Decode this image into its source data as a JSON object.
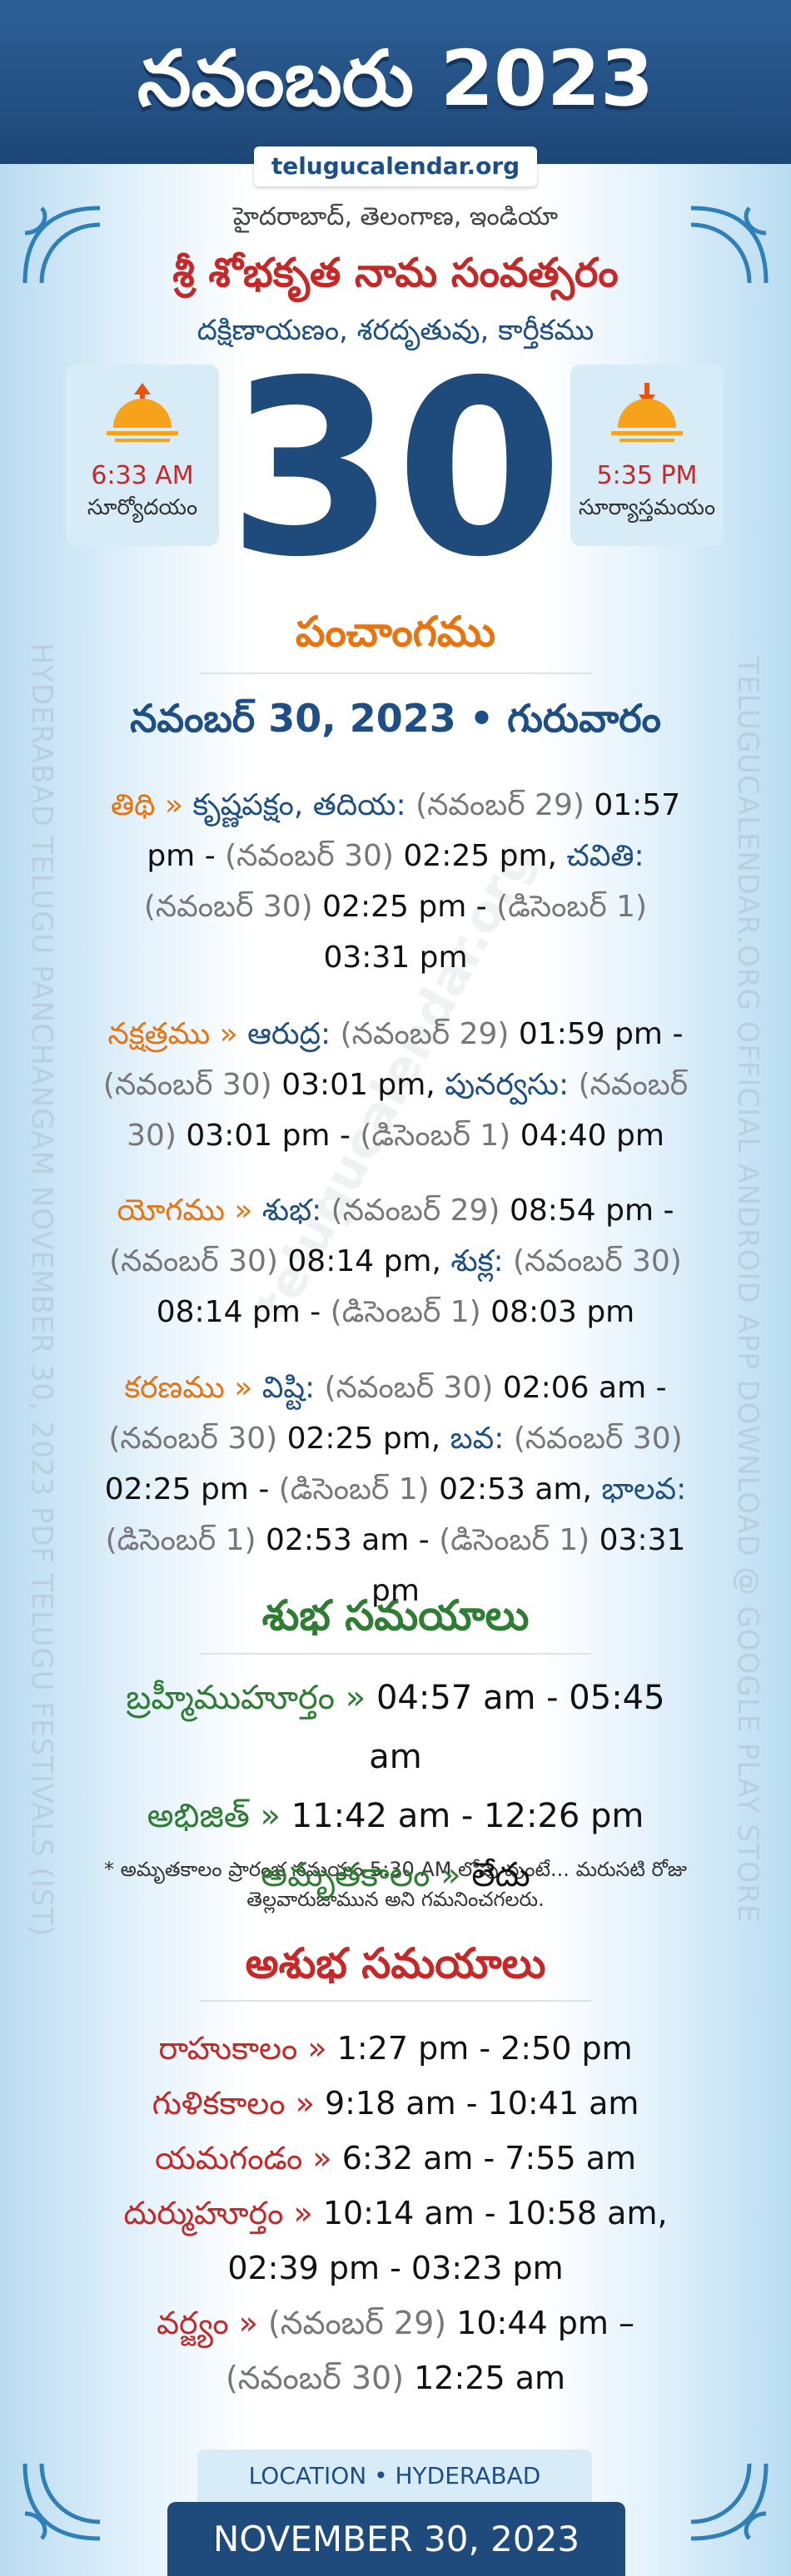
{
  "header": {
    "title": "నవంబరు 2023",
    "website": "telugucalendar.org"
  },
  "side_text": {
    "left": "HYDERABAD TELUGU PANCHANGAM NOVEMBER 30, 2023 PDF TELUGU FESTIVALS (IST)",
    "right": "TELUGUCALENDAR.ORG OFFICIAL ANDROID APP DOWNLOAD @ GOOGLE PLAY STORE"
  },
  "watermark": "telugucalendar.org",
  "location": "హైదరాబాద్, తెలంగాణ, ఇండియా",
  "year_name": "శ్రీ శోభకృత నామ సంవత్సరం",
  "season": "దక్షిణాయణం, శరదృతువు, కార్తీకము",
  "sunrise": {
    "time": "6:33 AM",
    "label": "సూర్యోదయం"
  },
  "sunset": {
    "time": "5:35 PM",
    "label": "సూర్యాస్తమయం"
  },
  "day": "30",
  "panchangam": {
    "heading": "పంచాంగము",
    "date": "నవంబర్ 30, 2023 • గురువారం",
    "items": [
      {
        "label": "తిథి »",
        "segments": [
          {
            "kind": "name",
            "text": "కృష్ణపక్షం, తదియ:"
          },
          {
            "kind": "date",
            "text": "(నవంబర్ 29)"
          },
          {
            "kind": "time",
            "text": "01:57 pm -"
          },
          {
            "kind": "date",
            "text": "(నవంబర్ 30)"
          },
          {
            "kind": "time",
            "text": "02:25 pm,"
          },
          {
            "kind": "name",
            "text": "చవితి:"
          },
          {
            "kind": "date",
            "text": "(నవంబర్ 30)"
          },
          {
            "kind": "time",
            "text": "02:25 pm -"
          },
          {
            "kind": "date",
            "text": "(డిసెంబర్ 1)"
          },
          {
            "kind": "time",
            "text": "03:31 pm"
          }
        ]
      },
      {
        "label": "నక్షత్రము »",
        "segments": [
          {
            "kind": "name",
            "text": "ఆరుద్ర:"
          },
          {
            "kind": "date",
            "text": "(నవంబర్ 29)"
          },
          {
            "kind": "time",
            "text": "01:59 pm -"
          },
          {
            "kind": "date",
            "text": "(నవంబర్ 30)"
          },
          {
            "kind": "time",
            "text": "03:01 pm,"
          },
          {
            "kind": "name",
            "text": "పునర్వసు:"
          },
          {
            "kind": "date",
            "text": "(నవంబర్ 30)"
          },
          {
            "kind": "time",
            "text": "03:01 pm -"
          },
          {
            "kind": "date",
            "text": "(డిసెంబర్ 1)"
          },
          {
            "kind": "time",
            "text": "04:40 pm"
          }
        ]
      },
      {
        "label": "యోగము »",
        "segments": [
          {
            "kind": "name",
            "text": "శుభ:"
          },
          {
            "kind": "date",
            "text": "(నవంబర్ 29)"
          },
          {
            "kind": "time",
            "text": "08:54 pm -"
          },
          {
            "kind": "date",
            "text": "(నవంబర్ 30)"
          },
          {
            "kind": "time",
            "text": "08:14 pm,"
          },
          {
            "kind": "name",
            "text": "శుక్ల:"
          },
          {
            "kind": "date",
            "text": "(నవంబర్ 30)"
          },
          {
            "kind": "time",
            "text": "08:14 pm -"
          },
          {
            "kind": "date",
            "text": "(డిసెంబర్ 1)"
          },
          {
            "kind": "time",
            "text": "08:03 pm"
          }
        ]
      },
      {
        "label": "కరణము »",
        "segments": [
          {
            "kind": "name",
            "text": "విష్టి:"
          },
          {
            "kind": "date",
            "text": "(నవంబర్ 30)"
          },
          {
            "kind": "time",
            "text": "02:06 am -"
          },
          {
            "kind": "date",
            "text": "(నవంబర్ 30)"
          },
          {
            "kind": "time",
            "text": "02:25 pm,"
          },
          {
            "kind": "name",
            "text": "బవ:"
          },
          {
            "kind": "date",
            "text": "(నవంబర్ 30)"
          },
          {
            "kind": "time",
            "text": "02:25 pm -"
          },
          {
            "kind": "date",
            "text": "(డిసెంబర్ 1)"
          },
          {
            "kind": "time",
            "text": "02:53 am,"
          },
          {
            "kind": "name",
            "text": "భాలవ:"
          },
          {
            "kind": "date",
            "text": "(డిసెంబర్ 1)"
          },
          {
            "kind": "time",
            "text": "02:53 am -"
          },
          {
            "kind": "date",
            "text": "(డిసెంబర్ 1)"
          },
          {
            "kind": "time",
            "text": "03:31 pm"
          }
        ]
      }
    ]
  },
  "shubha": {
    "heading": "శుభ సమయాలు",
    "items": [
      {
        "label": "బ్రహ్మీముహూర్తం »",
        "segments": [
          {
            "kind": "time",
            "text": "04:57 am - 05:45 am"
          }
        ]
      },
      {
        "label": "అభిజిత్ »",
        "segments": [
          {
            "kind": "time",
            "text": "11:42 am - 12:26 pm"
          }
        ]
      },
      {
        "label": "అమృతకాలం »",
        "segments": [
          {
            "kind": "time",
            "text": "లేదు"
          }
        ]
      }
    ],
    "note": "* అమృతకాలం ప్రారంభ సమయం 5:30 AM లోపు వుంటే... మరుసటి రోజు తెల్లవారుజామున అని గమనించగలరు."
  },
  "ashubha": {
    "heading": "అశుభ సమయాలు",
    "items": [
      {
        "label": "రాహుకాలం »",
        "segments": [
          {
            "kind": "time",
            "text": "1:27 pm - 2:50 pm"
          }
        ]
      },
      {
        "label": "గుళికకాలం »",
        "segments": [
          {
            "kind": "time",
            "text": "9:18 am - 10:41 am"
          }
        ]
      },
      {
        "label": "యమగండం »",
        "segments": [
          {
            "kind": "time",
            "text": "6:32 am - 7:55 am"
          }
        ]
      },
      {
        "label": "దుర్ముహూర్తం »",
        "segments": [
          {
            "kind": "time",
            "text": "10:14 am - 10:58 am,"
          },
          {
            "kind": "time",
            "text": "02:39 pm - 03:23 pm"
          }
        ]
      },
      {
        "label": "వర్జ్యం »",
        "segments": [
          {
            "kind": "date",
            "text": "(నవంబర్ 29)"
          },
          {
            "kind": "time",
            "text": "10:44 pm –"
          },
          {
            "kind": "date",
            "text": "(నవంబర్ 30)"
          },
          {
            "kind": "time",
            "text": "12:25 am"
          }
        ]
      }
    ]
  },
  "footer": {
    "location": "LOCATION • HYDERABAD",
    "date": "NOVEMBER 30, 2023"
  }
}
